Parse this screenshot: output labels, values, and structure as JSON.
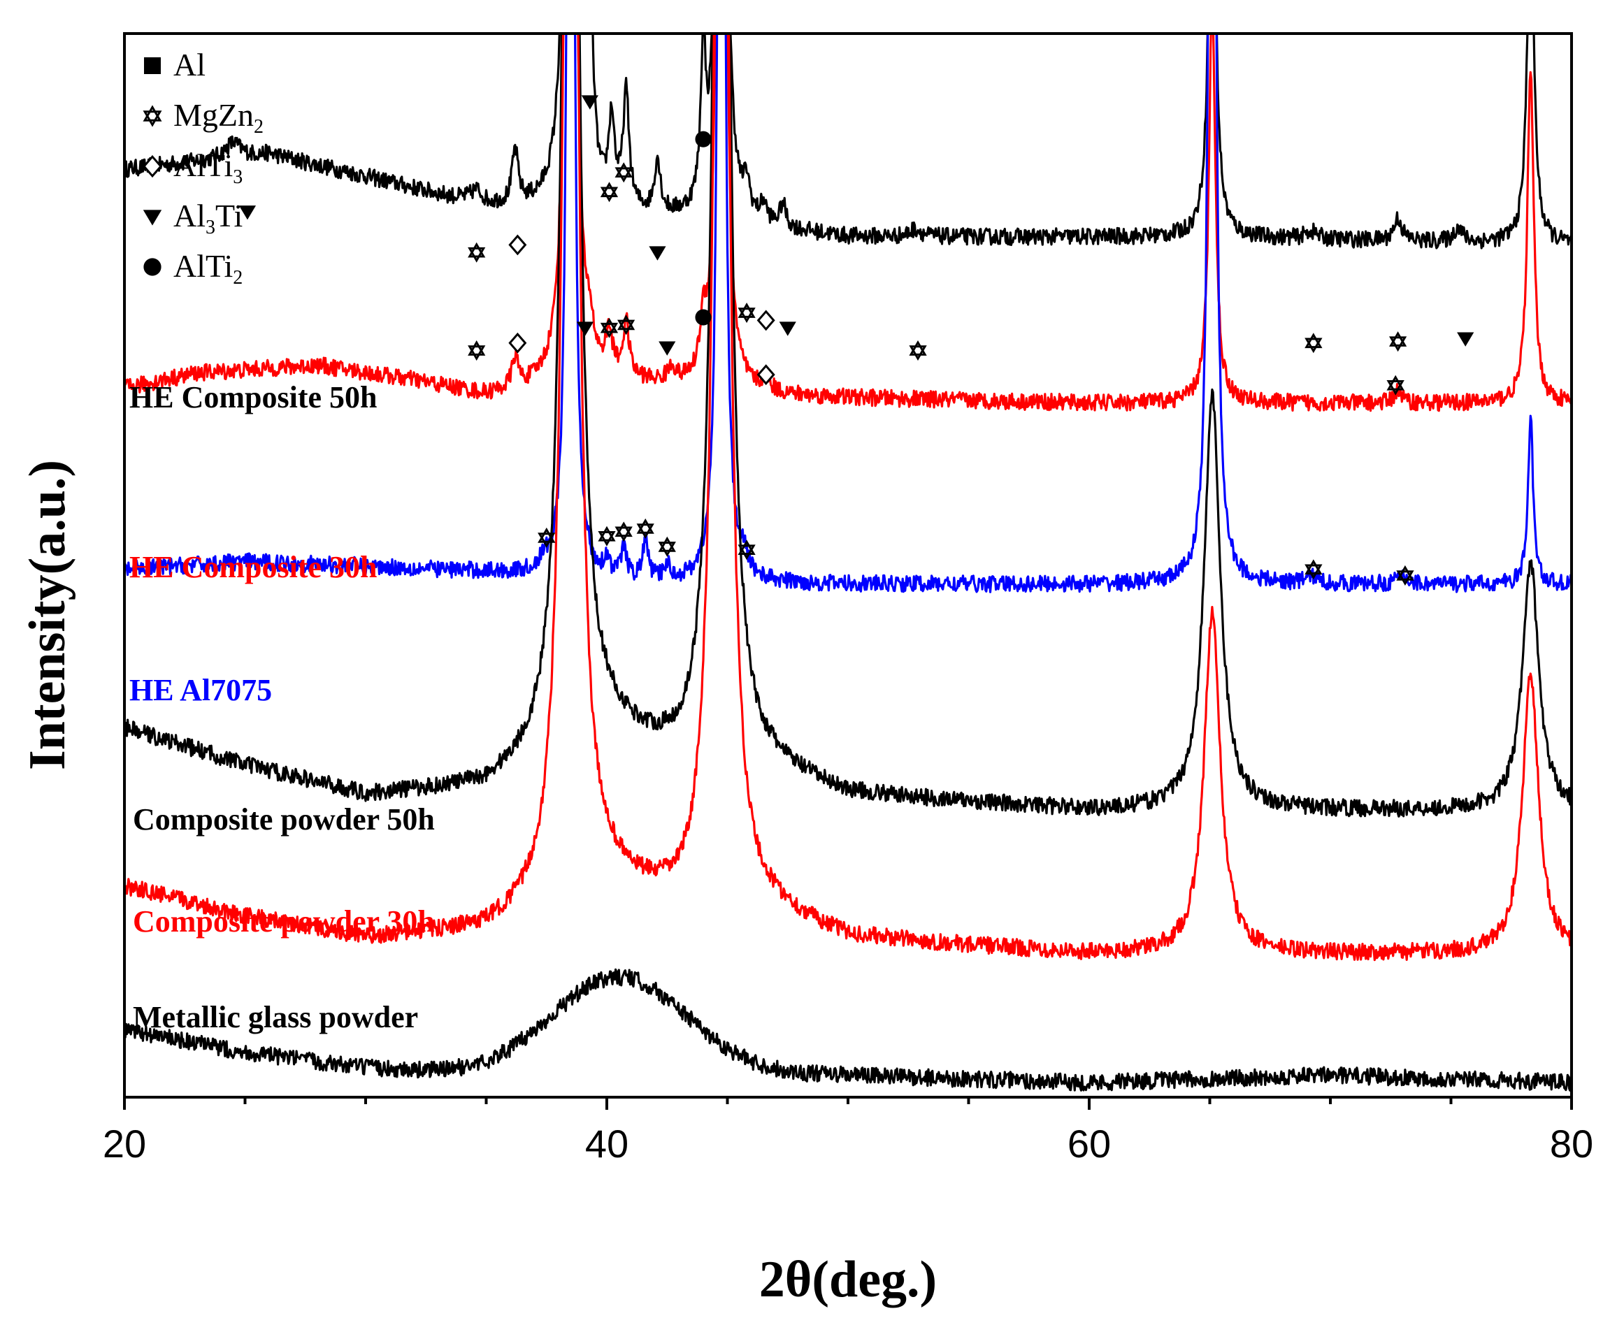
{
  "chart_data": {
    "type": "line",
    "title": "",
    "xlabel": "2θ(deg.)",
    "ylabel": "Intensity(a.u.)",
    "xlim": [
      20,
      80
    ],
    "xticks": [
      20,
      40,
      60,
      80
    ],
    "xtick_labels": [
      "20",
      "40",
      "60",
      "80"
    ],
    "grid": false,
    "legend_position": "top-left",
    "legend": [
      {
        "symbol": "filled-square",
        "name": "Al",
        "main": "Al",
        "sub": "",
        "tail": ""
      },
      {
        "symbol": "hexagram",
        "name": "MgZn2",
        "main": "MgZn",
        "sub": "2",
        "tail": ""
      },
      {
        "symbol": "open-diamond",
        "name": "AlTi3",
        "main": "AlTi",
        "sub": "3",
        "tail": ""
      },
      {
        "symbol": "filled-down-triangle",
        "name": "Al3Ti",
        "main": "Al",
        "sub": "3",
        "tail": "Ti"
      },
      {
        "symbol": "filled-circle",
        "name": "AlTi2",
        "main": "AlTi",
        "sub": "2",
        "tail": ""
      }
    ],
    "series": [
      {
        "name": "HE Composite 50h",
        "color": "#000000",
        "offset": 5.6,
        "baseline": [
          [
            20,
            0.5
          ],
          [
            26,
            0.6
          ],
          [
            30,
            0.45
          ],
          [
            35,
            0.25
          ],
          [
            40,
            0.2
          ],
          [
            50,
            0.05
          ],
          [
            60,
            0.05
          ],
          [
            65,
            0.05
          ],
          [
            80,
            0.0
          ]
        ],
        "hump": null,
        "peaks": [
          [
            24.5,
            0.1,
            0.4
          ],
          [
            34.6,
            0.08,
            0.3
          ],
          [
            36.2,
            0.35,
            0.15
          ],
          [
            38.5,
            12,
            0.15
          ],
          [
            39.3,
            1.35,
            0.15
          ],
          [
            40.2,
            0.55,
            0.15
          ],
          [
            40.8,
            0.75,
            0.15
          ],
          [
            42.1,
            0.35,
            0.15
          ],
          [
            44.0,
            1.0,
            0.12
          ],
          [
            44.75,
            12,
            0.13
          ],
          [
            45.8,
            0.2,
            0.15
          ],
          [
            46.5,
            0.12,
            0.15
          ],
          [
            47.3,
            0.15,
            0.15
          ],
          [
            52.8,
            0.05,
            0.3
          ],
          [
            65.1,
            3.2,
            0.16
          ],
          [
            69.2,
            0.05,
            0.3
          ],
          [
            72.8,
            0.15,
            0.2
          ],
          [
            75.3,
            0.1,
            0.2
          ],
          [
            78.3,
            2.4,
            0.16
          ]
        ],
        "markers": [
          [
            25.1,
            5.82,
            "filled-down-triangle"
          ],
          [
            34.6,
            5.55,
            "hexagram"
          ],
          [
            36.3,
            5.6,
            "open-diamond"
          ],
          [
            39.3,
            6.55,
            "filled-down-triangle"
          ],
          [
            40.1,
            5.95,
            "hexagram"
          ],
          [
            40.7,
            6.08,
            "hexagram"
          ],
          [
            42.1,
            5.55,
            "filled-down-triangle"
          ],
          [
            44.0,
            6.3,
            "filled-circle"
          ],
          [
            45.8,
            5.15,
            "hexagram"
          ],
          [
            46.6,
            5.1,
            "open-diamond"
          ],
          [
            47.5,
            5.05,
            "filled-down-triangle"
          ],
          [
            52.9,
            4.9,
            "hexagram"
          ],
          [
            69.3,
            4.95,
            "hexagram"
          ],
          [
            72.8,
            4.96,
            "hexagram"
          ],
          [
            75.6,
            4.98,
            "filled-down-triangle"
          ]
        ]
      },
      {
        "name": "HE Composite 30h",
        "color": "#ff0000",
        "offset": 4.55,
        "baseline": [
          [
            20,
            0.1
          ],
          [
            23,
            0.2
          ],
          [
            28,
            0.25
          ],
          [
            32,
            0.15
          ],
          [
            35,
            0.05
          ],
          [
            40,
            0.15
          ],
          [
            45,
            0.05
          ],
          [
            60,
            0.0
          ],
          [
            80,
            0.0
          ]
        ],
        "hump": null,
        "peaks": [
          [
            36.2,
            0.2,
            0.15
          ],
          [
            38.5,
            12,
            0.15
          ],
          [
            39.3,
            0.2,
            0.15
          ],
          [
            40.1,
            0.25,
            0.15
          ],
          [
            40.8,
            0.35,
            0.15
          ],
          [
            42.7,
            0.1,
            0.2
          ],
          [
            44.0,
            0.3,
            0.15
          ],
          [
            44.75,
            12,
            0.13
          ],
          [
            46.6,
            0.08,
            0.2
          ],
          [
            65.1,
            2.7,
            0.16
          ],
          [
            72.8,
            0.08,
            0.2
          ],
          [
            78.3,
            2.2,
            0.16
          ]
        ],
        "markers": [
          [
            34.6,
            4.9,
            "hexagram"
          ],
          [
            36.3,
            4.95,
            "open-diamond"
          ],
          [
            39.1,
            5.05,
            "filled-down-triangle"
          ],
          [
            40.1,
            5.05,
            "hexagram"
          ],
          [
            40.8,
            5.07,
            "hexagram"
          ],
          [
            42.5,
            4.92,
            "filled-down-triangle"
          ],
          [
            44.0,
            5.12,
            "filled-circle"
          ],
          [
            46.6,
            4.74,
            "open-diamond"
          ],
          [
            72.7,
            4.67,
            "hexagram"
          ]
        ]
      },
      {
        "name": "HE Al7075",
        "color": "#0000ff",
        "offset": 3.35,
        "baseline": [
          [
            20,
            0.1
          ],
          [
            25,
            0.15
          ],
          [
            30,
            0.12
          ],
          [
            35,
            0.08
          ],
          [
            40,
            0.0
          ],
          [
            50,
            0.0
          ],
          [
            60,
            0.0
          ],
          [
            80,
            0.0
          ]
        ],
        "hump": null,
        "peaks": [
          [
            37.4,
            0.05,
            0.25
          ],
          [
            38.5,
            12,
            0.12
          ],
          [
            40.0,
            0.12,
            0.15
          ],
          [
            40.7,
            0.2,
            0.15
          ],
          [
            41.6,
            0.25,
            0.15
          ],
          [
            42.5,
            0.1,
            0.15
          ],
          [
            44.75,
            12,
            0.12
          ],
          [
            45.7,
            0.1,
            0.2
          ],
          [
            65.1,
            12,
            0.12
          ],
          [
            69.2,
            0.05,
            0.3
          ],
          [
            73.0,
            0.05,
            0.3
          ],
          [
            78.3,
            1.1,
            0.13
          ]
        ],
        "markers": [
          [
            37.5,
            3.66,
            "hexagram"
          ],
          [
            40.0,
            3.67,
            "hexagram"
          ],
          [
            40.7,
            3.7,
            "hexagram"
          ],
          [
            41.6,
            3.72,
            "hexagram"
          ],
          [
            42.5,
            3.6,
            "hexagram"
          ],
          [
            45.8,
            3.58,
            "hexagram"
          ],
          [
            69.3,
            3.45,
            "hexagram"
          ],
          [
            73.1,
            3.41,
            "hexagram"
          ]
        ]
      },
      {
        "name": "Composite powder 50h",
        "color": "#000000",
        "offset": 1.85,
        "baseline": [
          [
            20,
            0.55
          ],
          [
            25,
            0.3
          ],
          [
            30,
            0.1
          ],
          [
            35,
            0.15
          ],
          [
            40,
            0.5
          ],
          [
            43,
            0.3
          ],
          [
            47,
            0.25
          ],
          [
            50,
            0.1
          ],
          [
            60,
            0.0
          ],
          [
            80,
            0.0
          ]
        ],
        "hump": null,
        "peaks": [
          [
            38.5,
            12,
            0.3
          ],
          [
            44.75,
            12,
            0.3
          ],
          [
            65.1,
            2.75,
            0.4
          ],
          [
            78.3,
            1.65,
            0.4
          ]
        ],
        "markers": []
      },
      {
        "name": "Composite powder 30h",
        "color": "#ff0000",
        "offset": 0.9,
        "baseline": [
          [
            20,
            0.45
          ],
          [
            25,
            0.25
          ],
          [
            30,
            0.1
          ],
          [
            35,
            0.15
          ],
          [
            40,
            0.45
          ],
          [
            43,
            0.28
          ],
          [
            47,
            0.25
          ],
          [
            50,
            0.1
          ],
          [
            60,
            0.0
          ],
          [
            80,
            0.0
          ]
        ],
        "hump": null,
        "peaks": [
          [
            38.5,
            12,
            0.3
          ],
          [
            44.75,
            12,
            0.3
          ],
          [
            65.1,
            2.25,
            0.4
          ],
          [
            78.3,
            1.85,
            0.4
          ]
        ],
        "markers": []
      },
      {
        "name": "Metallic glass powder",
        "color": "#000000",
        "offset": 0.05,
        "baseline": [
          [
            20,
            0.35
          ],
          [
            25,
            0.2
          ],
          [
            30,
            0.1
          ],
          [
            35,
            0.05
          ],
          [
            50,
            0.05
          ],
          [
            60,
            0.0
          ],
          [
            70,
            0.05
          ],
          [
            80,
            0.0
          ]
        ],
        "hump": [
          40.5,
          0.65,
          2.8
        ],
        "peaks": [],
        "markers": []
      }
    ]
  }
}
